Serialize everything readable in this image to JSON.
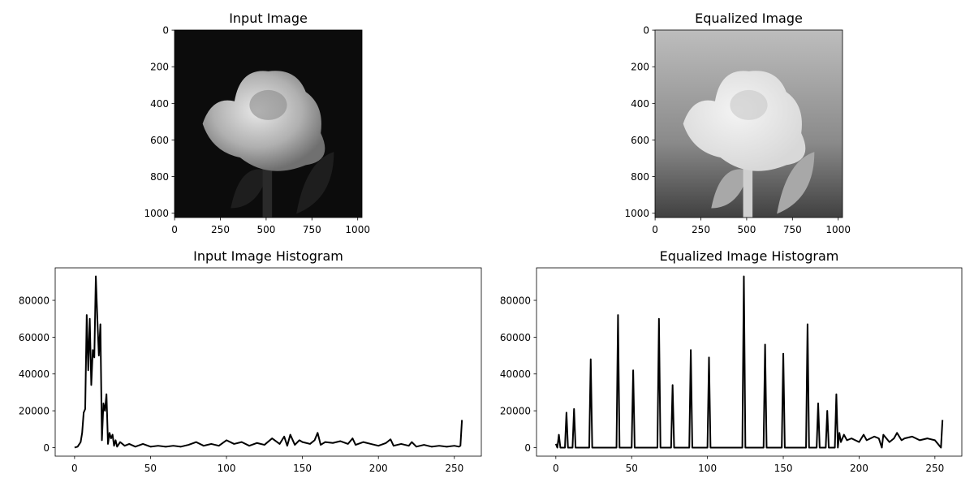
{
  "chart_data": [
    {
      "type": "image",
      "title": "Input Image",
      "variant": "input",
      "xlim": [
        -0.5,
        1023.5
      ],
      "ylim": [
        1023.5,
        -0.5
      ],
      "xticks": [
        0,
        250,
        500,
        750,
        1000
      ],
      "yticks": [
        0,
        200,
        400,
        600,
        800,
        1000
      ]
    },
    {
      "type": "image",
      "title": "Equalized Image",
      "variant": "equalized",
      "xlim": [
        -0.5,
        1023.5
      ],
      "ylim": [
        1023.5,
        -0.5
      ],
      "xticks": [
        0,
        250,
        500,
        750,
        1000
      ],
      "yticks": [
        0,
        200,
        400,
        600,
        800,
        1000
      ]
    },
    {
      "type": "line",
      "title": "Input Image Histogram",
      "color": "#000000",
      "xlim": [
        -12.75,
        267.75
      ],
      "ylim": [
        -4650,
        97650
      ],
      "xticks": [
        0,
        50,
        100,
        150,
        200,
        250
      ],
      "yticks": [
        0,
        20000,
        40000,
        60000,
        80000
      ],
      "x": [
        0,
        2,
        4,
        5,
        6,
        7,
        8,
        9,
        10,
        11,
        12,
        13,
        14,
        15,
        16,
        17,
        18,
        19,
        20,
        21,
        22,
        23,
        24,
        25,
        26,
        27,
        28,
        30,
        33,
        36,
        40,
        45,
        50,
        55,
        60,
        65,
        70,
        75,
        80,
        85,
        90,
        95,
        100,
        105,
        110,
        115,
        120,
        125,
        130,
        135,
        138,
        140,
        142,
        145,
        148,
        150,
        155,
        158,
        160,
        162,
        165,
        170,
        175,
        180,
        183,
        185,
        190,
        195,
        200,
        205,
        208,
        210,
        215,
        220,
        222,
        225,
        230,
        235,
        240,
        245,
        250,
        253,
        254,
        255
      ],
      "values": [
        0,
        500,
        3000,
        8000,
        19000,
        21000,
        72000,
        42000,
        70000,
        34000,
        53000,
        49000,
        93000,
        70000,
        50000,
        67000,
        4000,
        24000,
        20000,
        29000,
        2000,
        8000,
        5000,
        7000,
        1000,
        4000,
        500,
        3000,
        1000,
        2000,
        500,
        2000,
        500,
        1000,
        500,
        1000,
        500,
        1500,
        3000,
        1000,
        2000,
        1000,
        4000,
        2000,
        3000,
        1000,
        2500,
        1500,
        5000,
        2000,
        6000,
        1000,
        7000,
        1500,
        4000,
        3000,
        2000,
        4000,
        8000,
        1500,
        3000,
        2500,
        3500,
        2000,
        5000,
        1500,
        3000,
        2000,
        1000,
        2500,
        4500,
        1000,
        2000,
        1000,
        3000,
        500,
        1500,
        500,
        1000,
        500,
        1000,
        500,
        1000,
        15000
      ]
    },
    {
      "type": "line",
      "title": "Equalized Image Histogram",
      "color": "#000000",
      "xlim": [
        -12.75,
        267.75
      ],
      "ylim": [
        -4650,
        97650
      ],
      "xticks": [
        0,
        50,
        100,
        150,
        200,
        250
      ],
      "yticks": [
        0,
        20000,
        40000,
        60000,
        80000
      ],
      "x": [
        0,
        1,
        2,
        3,
        6,
        7,
        8,
        11,
        12,
        13,
        22,
        23,
        24,
        40,
        41,
        42,
        50,
        51,
        52,
        67,
        68,
        69,
        76,
        77,
        78,
        88,
        89,
        90,
        100,
        101,
        102,
        123,
        124,
        125,
        137,
        138,
        139,
        149,
        150,
        151,
        165,
        166,
        167,
        172,
        173,
        174,
        178,
        179,
        180,
        184,
        185,
        186,
        187,
        188,
        190,
        192,
        195,
        200,
        203,
        205,
        210,
        213,
        215,
        216,
        220,
        223,
        225,
        228,
        230,
        235,
        240,
        245,
        250,
        253,
        254,
        255
      ],
      "values": [
        2000,
        0,
        7000,
        0,
        0,
        19000,
        0,
        0,
        21000,
        0,
        0,
        48000,
        0,
        0,
        72000,
        0,
        0,
        42000,
        0,
        0,
        70000,
        0,
        0,
        34000,
        0,
        0,
        53000,
        0,
        0,
        49000,
        0,
        0,
        93000,
        0,
        0,
        56000,
        0,
        0,
        51000,
        0,
        0,
        67000,
        0,
        0,
        24000,
        0,
        0,
        20000,
        0,
        0,
        29000,
        0,
        8000,
        3000,
        7000,
        4000,
        5000,
        3000,
        7000,
        4000,
        6000,
        5000,
        0,
        7000,
        3000,
        5000,
        8000,
        4000,
        5000,
        6000,
        4000,
        5000,
        4000,
        1000,
        0,
        15000
      ]
    }
  ]
}
